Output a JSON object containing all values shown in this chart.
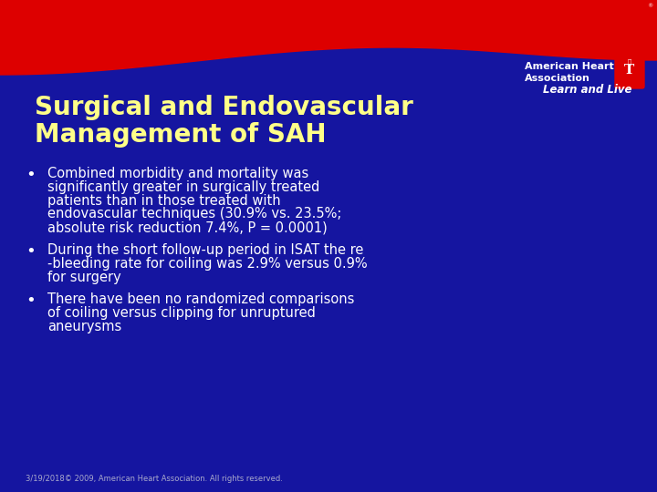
{
  "bg_color": "#1515a0",
  "red_color": "#dd0000",
  "title_color": "#ffff88",
  "bullet_color": "#ffffff",
  "footer_color": "#aaaacc",
  "title_line1": "Surgical and Endovascular",
  "title_line2": "Management of SAH",
  "bullets": [
    "Combined morbidity and mortality was\nsignificantly greater in surgically treated\npatients than in those treated with\nendovascular techniques (30.9% vs. 23.5%;\nabsolute risk reduction 7.4%, P = 0.0001)",
    "During the short follow-up period in ISAT the re\n-bleeding rate for coiling was 2.9% versus 0.9%\nfor surgery",
    "There have been no randomized comparisons\nof coiling versus clipping for unruptured\naneurysms"
  ],
  "footer": "3/19/2018© 2009, American Heart Association. All rights reserved.",
  "aha_text_line1": "American Heart",
  "aha_text_line2": "Association",
  "aha_tagline": "Learn and Live"
}
